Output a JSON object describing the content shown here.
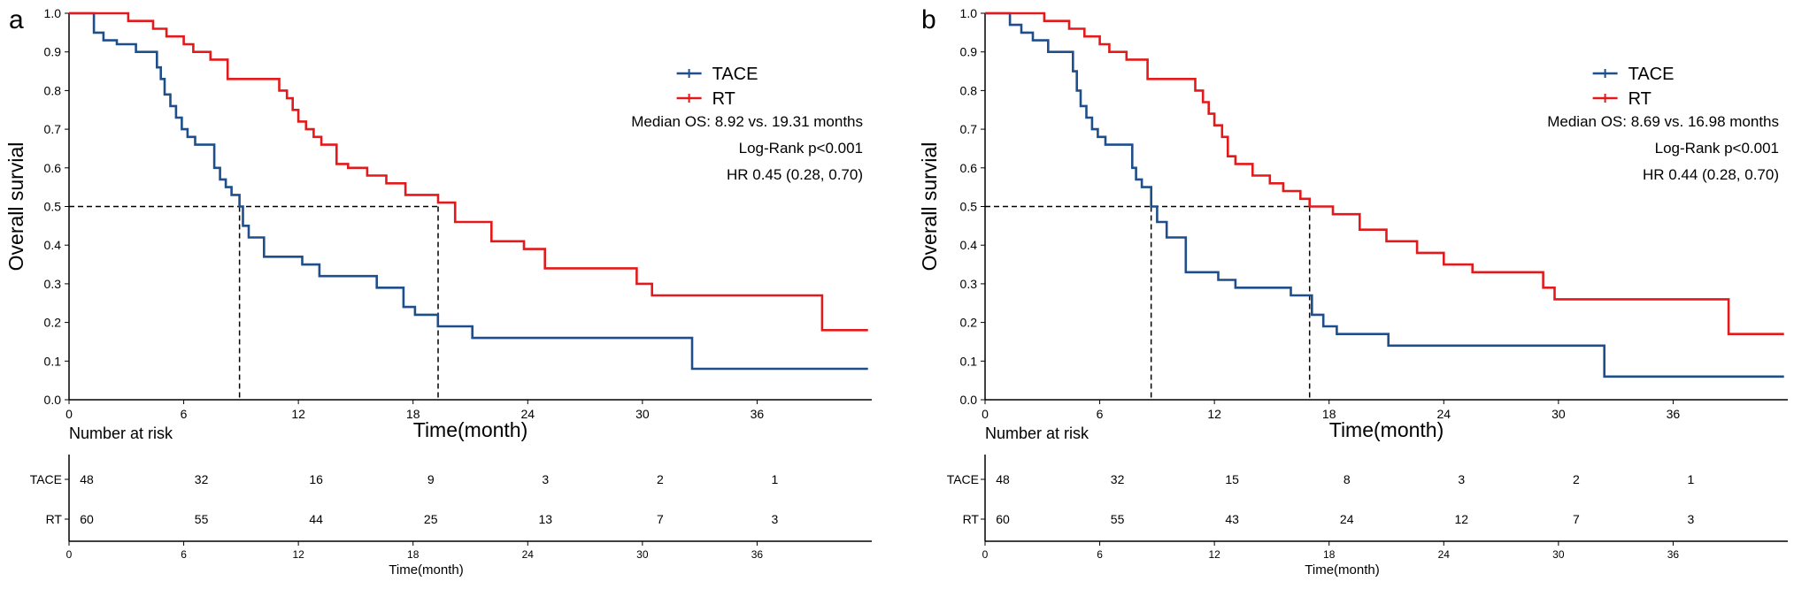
{
  "colors": {
    "TACE": "#1f4e8c",
    "RT": "#e31a1c",
    "axis": "#000000"
  },
  "chart_data": [
    {
      "type": "line",
      "panel_label": "a",
      "xlabel": "Time(month)",
      "ylabel": "Overall survial",
      "xlim": [
        0,
        42
      ],
      "ylim": [
        0,
        1
      ],
      "x_ticks": [
        "0",
        "6",
        "12",
        "18",
        "24",
        "30",
        "36"
      ],
      "y_ticks": [
        "0.0",
        "0.1",
        "0.2",
        "0.3",
        "0.4",
        "0.5",
        "0.6",
        "0.7",
        "0.8",
        "0.9",
        "1.0"
      ],
      "legend": [
        "TACE",
        "RT"
      ],
      "legend_position": "top-right",
      "annotations": [
        "Median OS: 8.92 vs. 19.31  months",
        "Log-Rank p<0.001",
        "HR 0.45 (0.28, 0.70)"
      ],
      "median_lines": [
        8.92,
        19.31
      ],
      "series": [
        {
          "name": "TACE",
          "x": [
            0,
            1.3,
            1.8,
            2.5,
            3.5,
            4.6,
            4.8,
            5.0,
            5.3,
            5.6,
            5.9,
            6.2,
            6.6,
            7.6,
            7.9,
            8.2,
            8.5,
            8.92,
            9.1,
            9.4,
            10.2,
            12.2,
            13.1,
            16.1,
            17.5,
            18.1,
            19.3,
            21.1,
            32.6,
            41.8
          ],
          "y": [
            1.0,
            0.95,
            0.93,
            0.92,
            0.9,
            0.86,
            0.83,
            0.79,
            0.76,
            0.73,
            0.7,
            0.68,
            0.66,
            0.6,
            0.57,
            0.55,
            0.53,
            0.5,
            0.45,
            0.42,
            0.37,
            0.35,
            0.32,
            0.29,
            0.24,
            0.22,
            0.19,
            0.16,
            0.08,
            0.08
          ]
        },
        {
          "name": "RT",
          "x": [
            0,
            3.1,
            4.4,
            5.1,
            6.0,
            6.5,
            7.4,
            8.3,
            11.0,
            11.4,
            11.7,
            12.0,
            12.4,
            12.8,
            13.2,
            14.0,
            14.6,
            15.6,
            16.6,
            17.6,
            19.31,
            20.2,
            22.1,
            23.8,
            24.9,
            29.7,
            30.5,
            39.4,
            41.8
          ],
          "y": [
            1.0,
            0.98,
            0.96,
            0.94,
            0.92,
            0.9,
            0.88,
            0.83,
            0.8,
            0.78,
            0.75,
            0.72,
            0.7,
            0.68,
            0.66,
            0.61,
            0.6,
            0.58,
            0.56,
            0.53,
            0.51,
            0.46,
            0.41,
            0.39,
            0.34,
            0.3,
            0.27,
            0.18,
            0.18
          ]
        }
      ],
      "risk_table": {
        "title": "Number at risk",
        "xlabel": "Time(month)",
        "rows": [
          {
            "name": "TACE",
            "values": [
              "48",
              "32",
              "16",
              "9",
              "3",
              "2",
              "1"
            ]
          },
          {
            "name": "RT",
            "values": [
              "60",
              "55",
              "44",
              "25",
              "13",
              "7",
              "3"
            ]
          }
        ]
      }
    },
    {
      "type": "line",
      "panel_label": "b",
      "xlabel": "Time(month)",
      "ylabel": "Overall survial",
      "xlim": [
        0,
        42
      ],
      "ylim": [
        0,
        1
      ],
      "x_ticks": [
        "0",
        "6",
        "12",
        "18",
        "24",
        "30",
        "36"
      ],
      "y_ticks": [
        "0.0",
        "0.1",
        "0.2",
        "0.3",
        "0.4",
        "0.5",
        "0.6",
        "0.7",
        "0.8",
        "0.9",
        "1.0"
      ],
      "legend": [
        "TACE",
        "RT"
      ],
      "legend_position": "top-right",
      "annotations": [
        "Median OS: 8.69 vs. 16.98  months",
        "Log-Rank p<0.001",
        "HR 0.44 (0.28, 0.70)"
      ],
      "median_lines": [
        8.69,
        16.98
      ],
      "series": [
        {
          "name": "TACE",
          "x": [
            0,
            1.3,
            1.9,
            2.5,
            3.3,
            4.6,
            4.8,
            5.0,
            5.3,
            5.6,
            5.9,
            6.3,
            7.7,
            7.9,
            8.2,
            8.69,
            9.0,
            9.5,
            10.5,
            12.2,
            13.1,
            16.0,
            17.1,
            17.7,
            18.4,
            21.1,
            32.4,
            41.8
          ],
          "y": [
            1.0,
            0.97,
            0.95,
            0.93,
            0.9,
            0.85,
            0.8,
            0.76,
            0.73,
            0.7,
            0.68,
            0.66,
            0.6,
            0.57,
            0.55,
            0.5,
            0.46,
            0.42,
            0.33,
            0.31,
            0.29,
            0.27,
            0.22,
            0.19,
            0.17,
            0.14,
            0.06,
            0.06
          ]
        },
        {
          "name": "RT",
          "x": [
            0,
            3.1,
            4.4,
            5.2,
            6.0,
            6.5,
            7.4,
            8.5,
            11.0,
            11.4,
            11.7,
            12.0,
            12.4,
            12.7,
            13.1,
            14.0,
            14.9,
            15.6,
            16.5,
            16.98,
            18.2,
            19.6,
            21.0,
            22.6,
            24.0,
            25.5,
            29.2,
            29.8,
            38.9,
            41.8
          ],
          "y": [
            1.0,
            0.98,
            0.96,
            0.94,
            0.92,
            0.9,
            0.88,
            0.83,
            0.8,
            0.77,
            0.74,
            0.71,
            0.68,
            0.63,
            0.61,
            0.58,
            0.56,
            0.54,
            0.52,
            0.5,
            0.48,
            0.44,
            0.41,
            0.38,
            0.35,
            0.33,
            0.29,
            0.26,
            0.17,
            0.17
          ]
        }
      ],
      "risk_table": {
        "title": "Number at risk",
        "xlabel": "Time(month)",
        "rows": [
          {
            "name": "TACE",
            "values": [
              "48",
              "32",
              "15",
              "8",
              "3",
              "2",
              "1"
            ]
          },
          {
            "name": "RT",
            "values": [
              "60",
              "55",
              "43",
              "24",
              "12",
              "7",
              "3"
            ]
          }
        ]
      }
    }
  ]
}
